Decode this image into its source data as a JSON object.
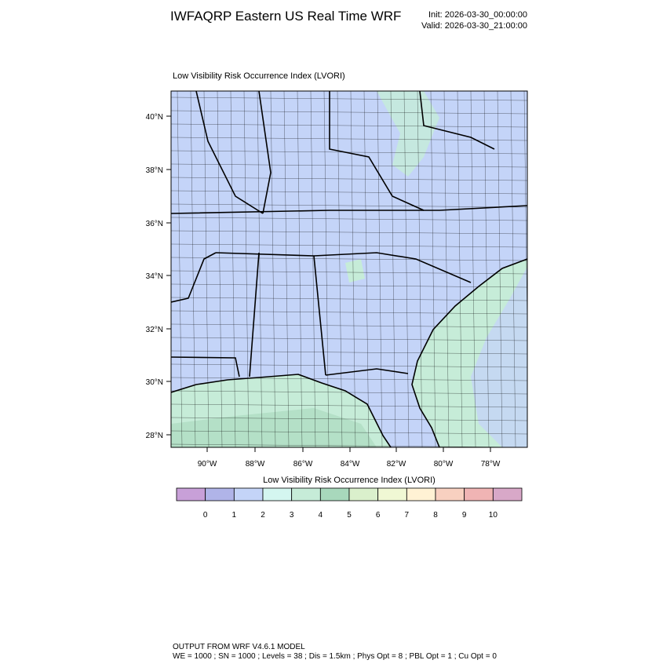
{
  "header": {
    "title": "IWFAQRP Eastern US Real Time WRF",
    "init": "Init: 2026-03-30_00:00:00",
    "valid": "Valid: 2026-03-30_21:00:00"
  },
  "map": {
    "title": "Low Visibility Risk Occurrence Index   (LVORI)",
    "lat_labels": [
      "40°N",
      "38°N",
      "36°N",
      "34°N",
      "32°N",
      "30°N",
      "28°N"
    ],
    "lon_labels": [
      "90°W",
      "88°W",
      "86°W",
      "84°W",
      "82°W",
      "80°W",
      "78°W"
    ]
  },
  "colorbar": {
    "title": "Low Visibility Risk Occurrence Index  (LVORI)",
    "colors": [
      "#c8a0d8",
      "#b0b4e8",
      "#c4d4f8",
      "#d4f6f0",
      "#c6ecd8",
      "#a8d8bc",
      "#daf0cc",
      "#f0f8d4",
      "#fff2d4",
      "#f8d0c0",
      "#f0b4b4",
      "#d8a8c8"
    ],
    "labels": [
      0,
      1,
      2,
      3,
      4,
      5,
      6,
      7,
      8,
      9,
      10
    ]
  },
  "footer": {
    "line1": "OUTPUT FROM WRF V4.6.1 MODEL",
    "line2": "WE = 1000 ; SN = 1000 ; Levels = 38 ; Dis = 1.5km ; Phys Opt = 8 ; PBL Opt = 1 ; Cu Opt = 0"
  }
}
